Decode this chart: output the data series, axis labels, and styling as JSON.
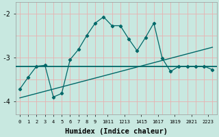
{
  "xlabel": "Humidex (Indice chaleur)",
  "x": [
    0,
    1,
    2,
    3,
    4,
    5,
    6,
    7,
    8,
    9,
    10,
    11,
    12,
    13,
    14,
    15,
    16,
    17,
    18,
    19,
    20,
    21,
    22,
    23
  ],
  "x_labels": [
    "0",
    "1",
    "2",
    "3",
    "4",
    "5",
    "6",
    "7",
    "8",
    "9",
    "1011",
    "1213",
    "1415",
    "1617",
    "1819",
    "2021",
    "2223"
  ],
  "y_curve": [
    -3.72,
    -3.45,
    -3.2,
    -3.18,
    -3.9,
    -3.82,
    -3.05,
    -2.82,
    -2.5,
    -2.22,
    -2.08,
    -2.28,
    -2.28,
    -2.58,
    -2.85,
    -2.55,
    -2.22,
    -3.02,
    -3.32,
    -3.2,
    -3.2,
    -3.2,
    -3.2,
    -3.28
  ],
  "y_linear": [
    -3.92,
    -3.87,
    -3.82,
    -3.77,
    -3.72,
    -3.67,
    -3.62,
    -3.57,
    -3.52,
    -3.47,
    -3.42,
    -3.37,
    -3.32,
    -3.27,
    -3.22,
    -3.17,
    -3.12,
    -3.07,
    -3.02,
    -2.97,
    -2.92,
    -2.87,
    -2.82,
    -2.77
  ],
  "y_hline": -3.2,
  "ylim": [
    -4.3,
    -1.75
  ],
  "yticks": [
    -4,
    -3,
    -2
  ],
  "ytick_labels": [
    "-4",
    "-3",
    "-2"
  ],
  "bg_color": "#c8e8e0",
  "line_color": "#006868",
  "grid_color_major": "#e8b0b0",
  "grid_color_minor": "#e8b0b0",
  "text_color": "#000000",
  "xlabel_fontsize": 7.5
}
